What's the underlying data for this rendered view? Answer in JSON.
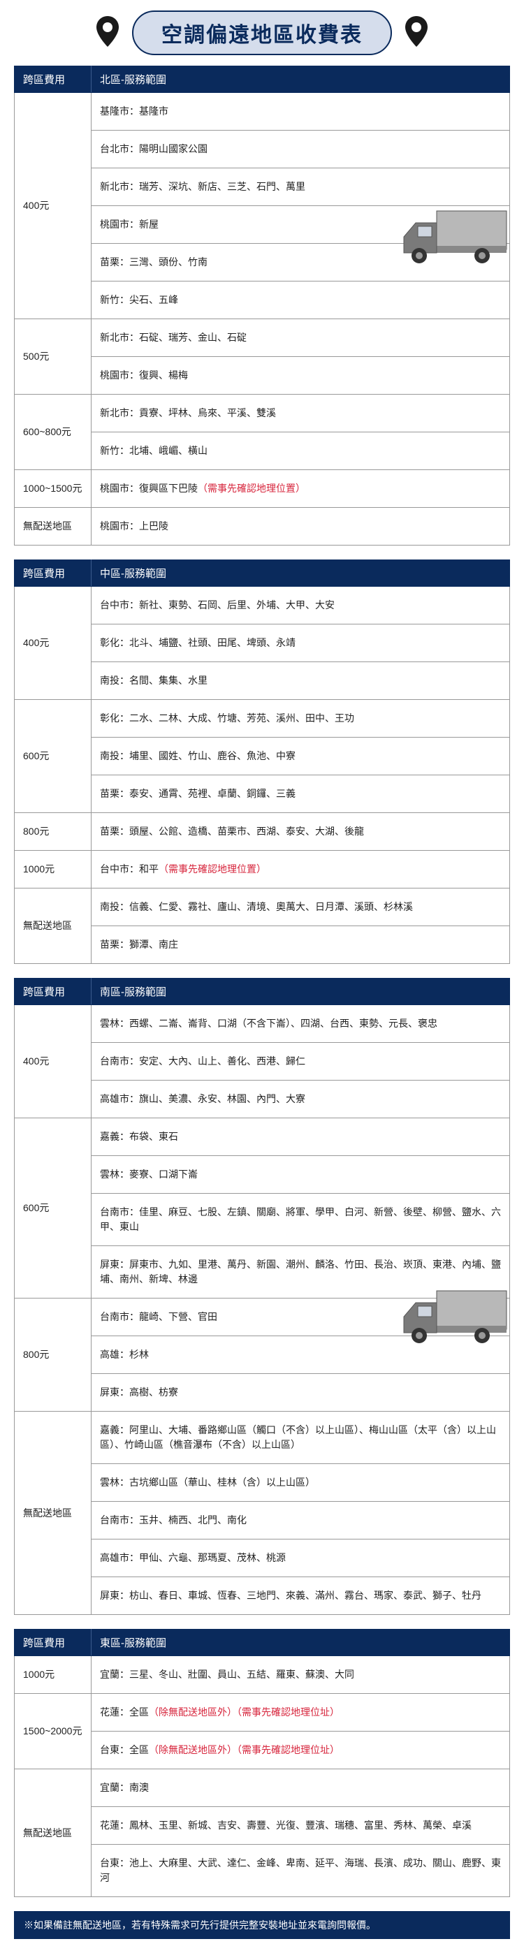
{
  "colors": {
    "headerBg": "#0a2a5c",
    "headerText": "#ffffff",
    "titleBg": "#d5ddec",
    "border": "#999999",
    "redNote": "#d7263d"
  },
  "title": "空調偏遠地區收費表",
  "feeColLabel": "跨區費用",
  "footer": "※如果備註無配送地區，若有特殊需求可先行提供完整安裝地址並來電詢問報價。",
  "regions": [
    {
      "name": "北區-服務範圍",
      "truckTop": 200,
      "rows": [
        {
          "fee": "400元",
          "lines": [
            "基隆市：基隆市",
            "台北市：陽明山國家公園",
            "新北市：瑞芳、深坑、新店、三芝、石門、萬里",
            "桃園市：新屋",
            "苗栗：三灣、頭份、竹南",
            "新竹：尖石、五峰"
          ]
        },
        {
          "fee": "500元",
          "lines": [
            "新北市：石碇、瑞芳、金山、石碇",
            "桃園市：復興、楊梅"
          ]
        },
        {
          "fee": "600~800元",
          "lines": [
            "新北市：貢寮、坪林、烏來、平溪、雙溪",
            "新竹：北埔、峨嵋、橫山"
          ]
        },
        {
          "fee": "1000~1500元",
          "lines": [
            "桃園市：復興區下巴陵<span class=\"red-note\">（需事先確認地理位置）</span>"
          ]
        },
        {
          "fee": "無配送地區",
          "lines": [
            "桃園市：上巴陵"
          ]
        }
      ]
    },
    {
      "name": "中區-服務範圍",
      "rows": [
        {
          "fee": "400元",
          "lines": [
            "台中市：新社、東勢、石岡、后里、外埔、大甲、大安",
            "彰化：北斗、埔鹽、社頭、田尾、埤頭、永靖",
            "南投：名間、集集、水里"
          ]
        },
        {
          "fee": "600元",
          "lines": [
            "彰化：二水、二林、大成、竹塘、芳苑、溪州、田中、王功",
            "南投：埔里、國姓、竹山、鹿谷、魚池、中寮",
            "苗栗：泰安、通霄、苑裡、卓蘭、銅鑼、三義"
          ]
        },
        {
          "fee": "800元",
          "lines": [
            "苗栗：頭屋、公館、造橋、苗栗市、西湖、泰安、大湖、後龍"
          ]
        },
        {
          "fee": "1000元",
          "lines": [
            "台中市：和平<span class=\"red-note\">（需事先確認地理位置）</span>"
          ]
        },
        {
          "fee": "無配送地區",
          "lines": [
            "南投：信義、仁愛、霧社、廬山、清境、奧萬大、日月潭、溪頭、杉林溪",
            "苗栗：獅潭、南庄"
          ]
        }
      ]
    },
    {
      "name": "南區-服務範圍",
      "truckTop": 440,
      "rows": [
        {
          "fee": "400元",
          "lines": [
            "雲林：西螺、二崙、崙背、口湖（不含下崙）、四湖、台西、東勢、元長、褒忠",
            "台南市：安定、大內、山上、善化、西港、歸仁",
            "高雄市：旗山、美濃、永安、林園、內門、大寮"
          ]
        },
        {
          "fee": "600元",
          "lines": [
            "嘉義：布袋、東石",
            "雲林：麥寮、口湖下崙",
            "台南市：佳里、麻豆、七股、左鎮、關廟、將軍、學甲、白河、新營、後壁、柳營、鹽水、六甲、東山",
            "屏東：屏東市、九如、里港、萬丹、新園、潮州、麟洛、竹田、長治、崁頂、東港、內埔、鹽埔、南州、新埤、林邊"
          ]
        },
        {
          "fee": "800元",
          "lines": [
            "台南市：龍崎、下營、官田",
            "高雄：杉林",
            "屏東：高樹、枋寮"
          ]
        },
        {
          "fee": "無配送地區",
          "lines": [
            "嘉義：阿里山、大埔、番路鄉山區（觸口（不含）以上山區）、梅山山區（太平（含）以上山區）、竹崎山區（樵音瀑布（不含）以上山區）",
            "雲林：古坑鄉山區（華山、桂林（含）以上山區）",
            "台南市：玉井、楠西、北門、南化",
            "高雄市：甲仙、六龜、那瑪夏、茂林、桃源",
            "屏東：枋山、春日、車城、恆春、三地門、來義、滿州、霧台、瑪家、泰武、獅子、牡丹"
          ]
        }
      ]
    },
    {
      "name": "東區-服務範圍",
      "rows": [
        {
          "fee": "1000元",
          "lines": [
            "宜蘭：三星、冬山、壯圍、員山、五結、羅東、蘇澳、大同"
          ]
        },
        {
          "fee": "1500~2000元",
          "lines": [
            "花蓮：全區<span class=\"red-note\">（除無配送地區外）（需事先確認地理位址）</span>",
            "台東：全區<span class=\"red-note\">（除無配送地區外）（需事先確認地理位址）</span>"
          ]
        },
        {
          "fee": "無配送地區",
          "lines": [
            "宜蘭：南澳",
            "花蓮：鳳林、玉里、新城、吉安、壽豐、光復、豐濱、瑞穗、富里、秀林、萬榮、卓溪",
            "台東：池上、大麻里、大武、達仁、金峰、卑南、延平、海瑞、長濱、成功、關山、鹿野、東河"
          ]
        }
      ]
    }
  ]
}
